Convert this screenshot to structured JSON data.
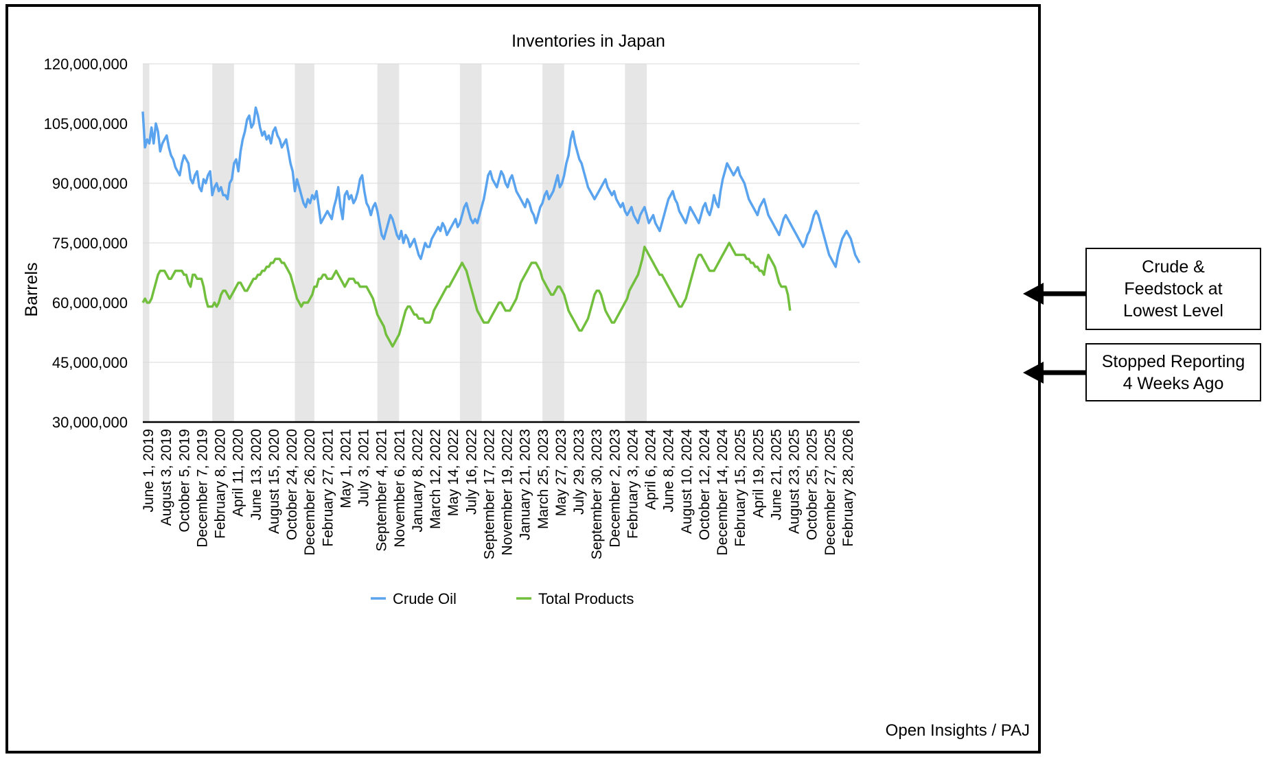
{
  "chart_data": {
    "type": "line",
    "title": "Inventories in Japan",
    "xlabel": "",
    "ylabel": "Barrels",
    "ylim": [
      30000000,
      120000000
    ],
    "y_ticks": [
      30000000,
      45000000,
      60000000,
      75000000,
      90000000,
      105000000,
      120000000
    ],
    "y_tick_labels": [
      "30,000,000",
      "45,000,000",
      "60,000,000",
      "75,000,000",
      "90,000,000",
      "105,000,000",
      "120,000,000"
    ],
    "x_tick_labels": [
      "June 1, 2019",
      "August 3, 2019",
      "October 5, 2019",
      "December 7, 2019",
      "February 8, 2020",
      "April 11, 2020",
      "June 13, 2020",
      "August 15, 2020",
      "October 24, 2020",
      "December 26, 2020",
      "February 27, 2021",
      "May 1, 2021",
      "July 3, 2021",
      "September 4, 2021",
      "November 6, 2021",
      "January 8, 2022",
      "March 12, 2022",
      "May 14, 2022",
      "July 16, 2022",
      "September 17, 2022",
      "November 19, 2022",
      "January 21, 2023",
      "March 25, 2023",
      "May 27, 2023",
      "July 29, 2023",
      "September 30, 2023",
      "December 2, 2023",
      "February 3, 2024",
      "April 6, 2024",
      "June 8, 2024",
      "August 10, 2024",
      "October 12, 2024",
      "December 14, 2024",
      "February 15, 2025",
      "April 19, 2025",
      "June 21, 2025",
      "August 23, 2025",
      "October 25, 2025",
      "December 27, 2025",
      "February 28, 2026"
    ],
    "shaded_periods_week_index": [
      [
        0,
        3
      ],
      [
        32,
        42
      ],
      [
        70,
        79
      ],
      [
        108,
        118
      ],
      [
        146,
        156
      ],
      [
        184,
        194
      ],
      [
        222,
        232
      ]
    ],
    "grid": true,
    "legend_position": "bottom",
    "series": [
      {
        "name": "Crude Oil",
        "color": "#5aa3ee",
        "values": [
          108,
          99,
          101,
          100,
          104,
          100,
          105,
          103,
          98,
          100,
          101,
          102,
          99,
          97,
          96,
          94,
          93,
          92,
          95,
          97,
          96,
          95,
          91,
          90,
          92,
          93,
          89,
          88,
          91,
          90,
          92,
          93,
          87,
          89,
          90,
          88,
          89,
          87,
          87,
          86,
          90,
          91,
          95,
          96,
          93,
          98,
          101,
          103,
          106,
          107,
          104,
          105,
          109,
          107,
          104,
          102,
          103,
          101,
          102,
          100,
          103,
          104,
          102,
          101,
          99,
          100,
          101,
          98,
          95,
          93,
          88,
          91,
          89,
          87,
          85,
          84,
          86,
          85,
          87,
          86,
          88,
          84,
          80,
          81,
          82,
          83,
          82,
          81,
          84,
          86,
          89,
          84,
          81,
          87,
          88,
          86,
          87,
          85,
          86,
          88,
          91,
          92,
          88,
          85,
          84,
          82,
          84,
          85,
          83,
          80,
          77,
          76,
          78,
          80,
          82,
          81,
          79,
          77,
          76,
          78,
          75,
          77,
          76,
          74,
          75,
          76,
          74,
          72,
          71,
          73,
          75,
          74,
          74,
          76,
          77,
          78,
          79,
          78,
          80,
          79,
          77,
          78,
          79,
          80,
          81,
          79,
          80,
          82,
          84,
          85,
          83,
          81,
          80,
          81,
          80,
          82,
          84,
          86,
          89,
          92,
          93,
          91,
          90,
          89,
          91,
          93,
          92,
          90,
          89,
          91,
          92,
          90,
          88,
          87,
          86,
          85,
          84,
          86,
          85,
          83,
          82,
          80,
          82,
          84,
          85,
          87,
          88,
          86,
          87,
          88,
          90,
          92,
          89,
          90,
          92,
          95,
          97,
          101,
          103,
          100,
          98,
          96,
          95,
          93,
          91,
          89,
          88,
          87,
          86,
          87,
          88,
          89,
          90,
          91,
          89,
          88,
          87,
          88,
          86,
          85,
          84,
          85,
          83,
          82,
          83,
          84,
          82,
          81,
          80,
          82,
          83,
          84,
          82,
          80,
          81,
          82,
          80,
          79,
          78,
          80,
          82,
          84,
          86,
          87,
          88,
          86,
          85,
          83,
          82,
          81,
          80,
          82,
          84,
          83,
          82,
          81,
          80,
          82,
          84,
          85,
          83,
          82,
          84,
          87,
          85,
          84,
          88,
          91,
          93,
          95,
          94,
          93,
          92,
          93,
          94,
          92,
          91,
          90,
          88,
          86,
          85,
          84,
          83,
          82,
          84,
          85,
          86,
          84,
          82,
          81,
          80,
          79,
          78,
          77,
          79,
          81,
          82,
          81,
          80,
          79,
          78,
          77,
          76,
          75,
          74,
          75,
          77,
          78,
          80,
          82,
          83,
          82,
          80,
          78,
          76,
          74,
          72,
          71,
          70,
          69,
          72,
          74,
          76,
          77,
          78,
          77,
          76,
          74,
          72,
          71,
          70
        ]
      },
      {
        "name": "Total Products",
        "color": "#72bf3e",
        "values": [
          60,
          61,
          60,
          60,
          61,
          63,
          65,
          67,
          68,
          68,
          68,
          67,
          66,
          66,
          67,
          68,
          68,
          68,
          68,
          67,
          67,
          65,
          64,
          67,
          67,
          66,
          66,
          66,
          64,
          61,
          59,
          59,
          59,
          60,
          59,
          60,
          62,
          63,
          63,
          62,
          61,
          62,
          63,
          64,
          65,
          65,
          64,
          63,
          63,
          64,
          65,
          66,
          66,
          67,
          67,
          68,
          68,
          69,
          69,
          70,
          70,
          71,
          71,
          71,
          70,
          70,
          69,
          68,
          67,
          65,
          63,
          61,
          60,
          59,
          60,
          60,
          60,
          61,
          62,
          64,
          64,
          66,
          66,
          67,
          67,
          66,
          66,
          66,
          67,
          68,
          67,
          66,
          65,
          64,
          65,
          66,
          66,
          66,
          65,
          65,
          64,
          64,
          64,
          64,
          63,
          62,
          61,
          59,
          57,
          56,
          55,
          54,
          52,
          51,
          50,
          49,
          50,
          51,
          52,
          54,
          56,
          58,
          59,
          59,
          58,
          57,
          57,
          56,
          56,
          56,
          55,
          55,
          55,
          56,
          58,
          59,
          60,
          61,
          62,
          63,
          64,
          64,
          65,
          66,
          67,
          68,
          69,
          70,
          69,
          68,
          66,
          64,
          62,
          60,
          58,
          57,
          56,
          55,
          55,
          55,
          56,
          57,
          58,
          59,
          60,
          60,
          59,
          58,
          58,
          58,
          59,
          60,
          61,
          63,
          65,
          66,
          67,
          68,
          69,
          70,
          70,
          70,
          69,
          68,
          66,
          65,
          64,
          63,
          62,
          62,
          63,
          64,
          64,
          63,
          62,
          60,
          58,
          57,
          56,
          55,
          54,
          53,
          53,
          54,
          55,
          56,
          58,
          60,
          62,
          63,
          63,
          62,
          60,
          58,
          57,
          56,
          55,
          55,
          56,
          57,
          58,
          59,
          60,
          61,
          63,
          64,
          65,
          66,
          67,
          69,
          71,
          74,
          73,
          72,
          71,
          70,
          69,
          68,
          67,
          67,
          66,
          65,
          64,
          63,
          62,
          61,
          60,
          59,
          59,
          60,
          61,
          63,
          65,
          67,
          69,
          71,
          72,
          72,
          71,
          70,
          69,
          68,
          68,
          68,
          69,
          70,
          71,
          72,
          73,
          74,
          75,
          74,
          73,
          72,
          72,
          72,
          72,
          72,
          71,
          71,
          70,
          70,
          69,
          69,
          68,
          68,
          67,
          70,
          72,
          71,
          70,
          69,
          67,
          65,
          64,
          64,
          64,
          62,
          58
        ]
      }
    ]
  },
  "legend": {
    "items": [
      {
        "label": "Crude Oil",
        "color": "#5aa3ee"
      },
      {
        "label": "Total Products",
        "color": "#72bf3e"
      }
    ]
  },
  "source_note": "Open Insights / PAJ",
  "callouts": {
    "crude": "Crude &\nFeedstock at\nLowest Level",
    "stopped": "Stopped Reporting\n4 Weeks Ago"
  }
}
